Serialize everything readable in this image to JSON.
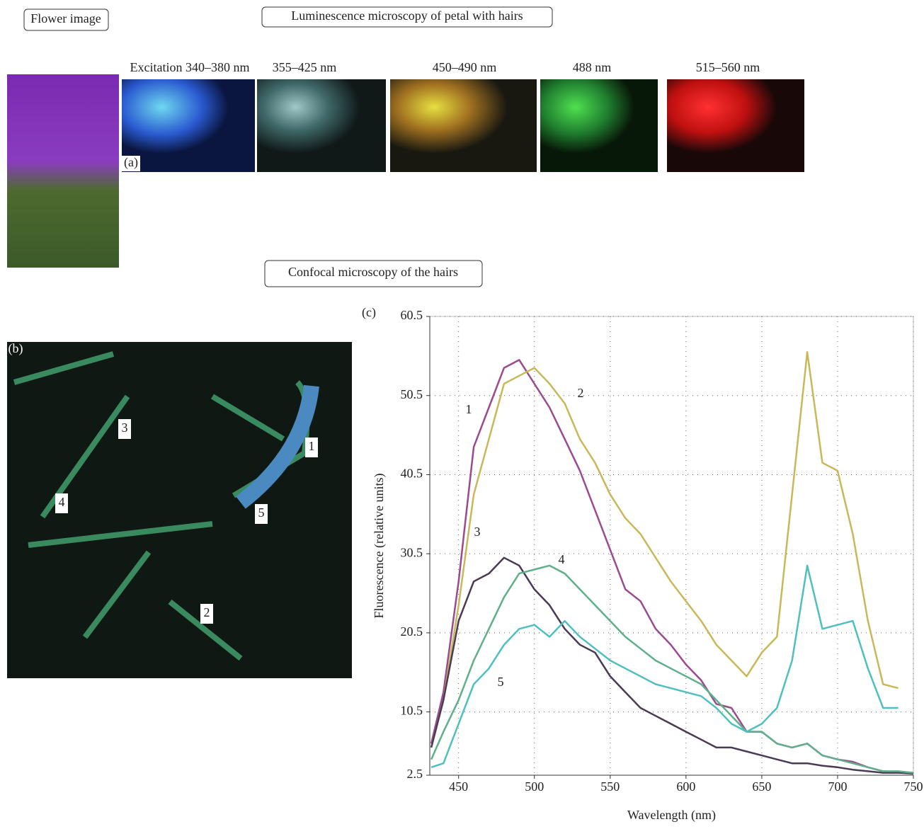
{
  "headers": {
    "flower": "Flower image",
    "luminescence": "Luminescence microscopy of petal with hairs",
    "confocal": "Confocal microscopy of the hairs"
  },
  "panels": {
    "a": "(a)",
    "b": "(b)",
    "c": "(c)"
  },
  "excitation": [
    "Excitation 340–380 nm",
    "355–425 nm",
    "450–490 nm",
    "488 nm",
    "515–560 nm"
  ],
  "hair_labels": [
    "1",
    "2",
    "3",
    "4",
    "5"
  ],
  "chart_data": {
    "type": "line",
    "x_label": "Wavelength (nm)",
    "y_label": "Fluorescence (relative units)",
    "x": [
      432,
      440,
      450,
      460,
      470,
      480,
      490,
      500,
      510,
      520,
      530,
      540,
      550,
      560,
      570,
      580,
      590,
      600,
      610,
      620,
      630,
      640,
      650,
      660,
      670,
      680,
      690,
      700,
      710,
      720,
      730,
      740,
      750
    ],
    "xlim": [
      431,
      750
    ],
    "xticks": [
      450,
      500,
      550,
      600,
      650,
      700,
      750
    ],
    "ylim": [
      2.5,
      60.5
    ],
    "yticks": [
      2.5,
      10.5,
      20.5,
      30.5,
      40.5,
      50.5,
      60.5
    ],
    "grid": true,
    "series": [
      {
        "name": "1",
        "color": "#9b4a8f",
        "values": [
          6.5,
          13,
          27,
          44,
          49,
          54,
          55,
          52,
          49,
          45,
          41,
          36,
          31,
          26,
          24.5,
          21,
          19,
          16.5,
          14.5,
          11.5,
          11,
          8,
          8,
          6.5,
          6,
          6.5,
          5,
          4.5,
          4.2,
          3.5,
          3,
          2.9,
          2.8
        ]
      },
      {
        "name": "2",
        "color": "#c8b85a",
        "values": [
          6,
          12,
          24,
          38,
          45,
          52,
          53,
          54,
          52,
          49.5,
          45,
          42,
          38,
          35,
          33,
          30,
          27,
          24.5,
          22,
          19,
          17,
          15,
          18,
          20,
          38,
          56,
          42,
          41,
          33,
          22,
          14,
          13.5,
          null
        ]
      },
      {
        "name": "3",
        "color": "#4a3a55",
        "values": [
          6,
          12,
          22,
          27,
          28,
          30,
          29,
          26,
          24,
          21,
          19,
          18,
          15,
          13,
          11,
          10,
          9,
          8,
          7,
          6,
          6,
          5.5,
          5,
          4.5,
          4,
          4,
          3.7,
          3.5,
          3.2,
          3,
          2.8,
          2.8,
          2.7
        ]
      },
      {
        "name": "4",
        "color": "#5fb08a",
        "values": [
          4.5,
          8,
          12,
          17,
          21,
          25,
          28,
          28.5,
          29,
          28,
          26,
          24,
          22,
          20,
          18.5,
          17,
          16,
          15,
          14,
          12,
          10,
          8,
          8,
          6.5,
          6,
          6.5,
          5,
          4.5,
          4,
          3.5,
          3,
          3,
          2.8
        ]
      },
      {
        "name": "5",
        "color": "#4fbfc0",
        "values": [
          3.5,
          4,
          9,
          14,
          16,
          19,
          21,
          21.5,
          20,
          22,
          20,
          18.5,
          17,
          16,
          15,
          14,
          13.5,
          13,
          12.5,
          11,
          9,
          8,
          9,
          11,
          17,
          29,
          21,
          21.5,
          22,
          16,
          11,
          11,
          null
        ]
      }
    ]
  }
}
